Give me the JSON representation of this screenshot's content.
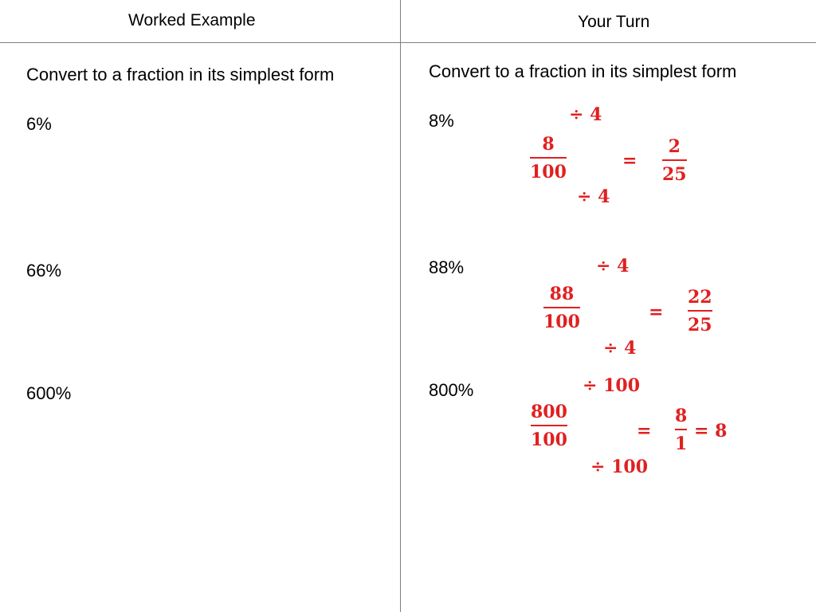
{
  "headers": {
    "left": "Worked Example",
    "right": "Your Turn"
  },
  "left": {
    "instruction": "Convert to a fraction in its simplest form",
    "questions": [
      "6%",
      "66%",
      "600%"
    ]
  },
  "right": {
    "instruction": "Convert to a fraction in its simplest form",
    "q1": {
      "label": "8%",
      "divisor_top": "÷ 4",
      "num": "8",
      "den": "100",
      "equals": "=",
      "ans_num": "2",
      "ans_den": "25",
      "divisor_bottom": "÷ 4"
    },
    "q2": {
      "label": "88%",
      "divisor_top": "÷ 4",
      "num": "88",
      "den": "100",
      "equals": "=",
      "ans_num": "22",
      "ans_den": "25",
      "divisor_bottom": "÷ 4"
    },
    "q3": {
      "label": "800%",
      "divisor_top": "÷ 100",
      "num": "800",
      "den": "100",
      "equals": "=",
      "ans_num": "8",
      "ans_den": "1",
      "result": "= 8",
      "divisor_bottom": "÷ 100"
    }
  },
  "colors": {
    "annotation": "#e02020",
    "gridline": "#7f7f7f"
  }
}
